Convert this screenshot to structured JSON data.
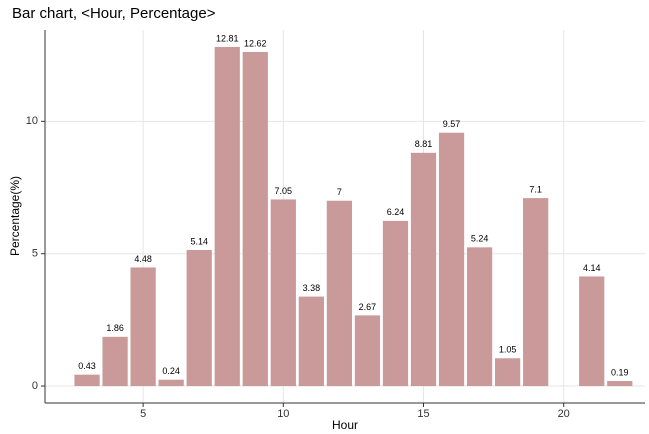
{
  "chart_data": {
    "type": "bar",
    "title": "Bar chart, <Hour, Percentage>",
    "x_label": "Hour",
    "y_label": "Percentage(%)",
    "x": [
      3,
      4,
      5,
      6,
      7,
      8,
      9,
      10,
      11,
      12,
      13,
      14,
      15,
      16,
      17,
      18,
      19,
      21,
      22
    ],
    "values": [
      0.43,
      1.86,
      4.48,
      0.24,
      5.14,
      12.81,
      12.62,
      7.05,
      3.38,
      7,
      2.67,
      6.24,
      8.81,
      9.57,
      5.24,
      1.05,
      7.1,
      4.14,
      0.19
    ],
    "color": "#c99a99",
    "xlim": [
      1.5,
      22.9
    ],
    "xticks": [
      5,
      10,
      15,
      20
    ],
    "ylim": [
      -0.64,
      13.45
    ],
    "yticks": [
      0,
      5,
      10
    ],
    "grid": true
  }
}
